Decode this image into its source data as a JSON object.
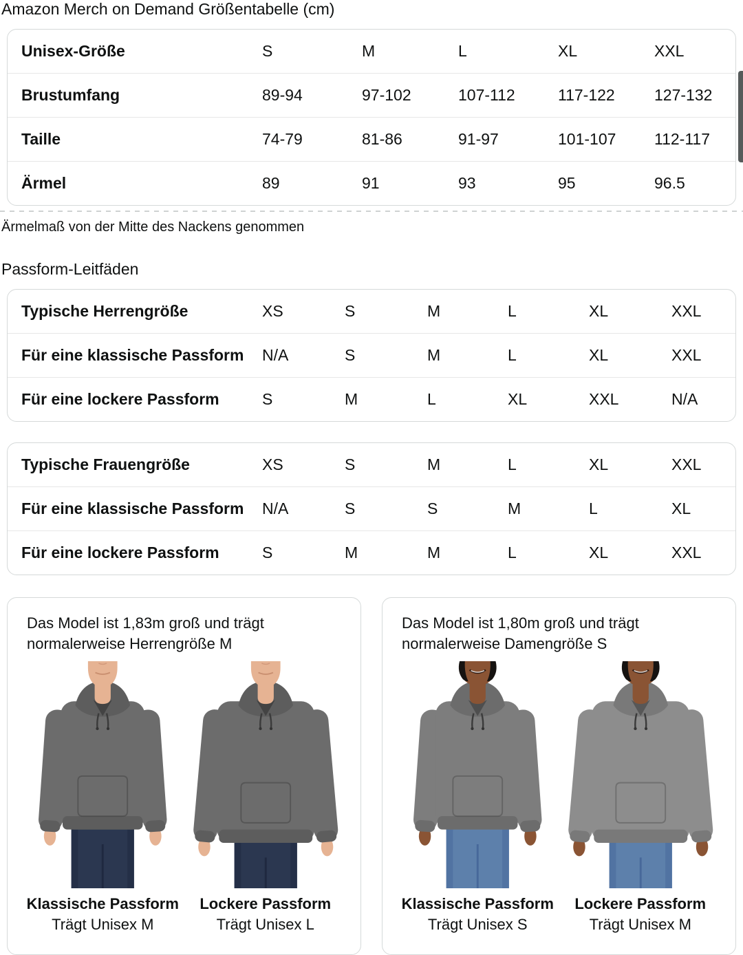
{
  "page": {
    "title": "Amazon Merch on Demand Größentabelle (cm)"
  },
  "size_table": {
    "rows": [
      {
        "label": "Unisex-Größe",
        "values": [
          "S",
          "M",
          "L",
          "XL",
          "XXL"
        ]
      },
      {
        "label": "Brustumfang",
        "values": [
          "89-94",
          "97-102",
          "107-112",
          "117-122",
          "127-132"
        ]
      },
      {
        "label": "Taille",
        "values": [
          "74-79",
          "81-86",
          "91-97",
          "101-107",
          "112-117"
        ]
      },
      {
        "label": "Ärmel",
        "values": [
          "89",
          "91",
          "93",
          "95",
          "96.5"
        ]
      }
    ]
  },
  "note": "Ärmelmaß von der Mitte des Nackens genommen",
  "fit_guides_heading": "Passform-Leitfäden",
  "mens_fit_table": {
    "rows": [
      {
        "label": "Typische Herrengröße",
        "values": [
          "XS",
          "S",
          "M",
          "L",
          "XL",
          "XXL"
        ]
      },
      {
        "label": "Für eine klassische Passform",
        "values": [
          "N/A",
          "S",
          "M",
          "L",
          "XL",
          "XXL"
        ]
      },
      {
        "label": "Für eine lockere Passform",
        "values": [
          "S",
          "M",
          "L",
          "XL",
          "XXL",
          "N/A"
        ]
      }
    ]
  },
  "womens_fit_table": {
    "rows": [
      {
        "label": "Typische Frauengröße",
        "values": [
          "XS",
          "S",
          "M",
          "L",
          "XL",
          "XXL"
        ]
      },
      {
        "label": "Für eine klassische Passform",
        "values": [
          "N/A",
          "S",
          "S",
          "M",
          "L",
          "XL"
        ]
      },
      {
        "label": "Für eine lockere Passform",
        "values": [
          "S",
          "M",
          "M",
          "L",
          "XL",
          "XXL"
        ]
      }
    ]
  },
  "model_cards": [
    {
      "description": "Das Model ist 1,83m groß und trägt normalerweise Herrengröße M",
      "figures": [
        {
          "fit_label": "Klassische Passform",
          "size_label": "Trägt Unisex M",
          "person": "man",
          "variant": "classic",
          "hoodie": "#6c6c6c"
        },
        {
          "fit_label": "Lockere Passform",
          "size_label": "Trägt Unisex L",
          "person": "man",
          "variant": "loose",
          "hoodie": "#6c6c6c"
        }
      ]
    },
    {
      "description": "Das Model ist 1,80m groß und trägt normalerweise Damengröße S",
      "figures": [
        {
          "fit_label": "Klassische Passform",
          "size_label": "Trägt Unisex S",
          "person": "woman",
          "variant": "classic",
          "hoodie": "#7d7d7d"
        },
        {
          "fit_label": "Lockere Passform",
          "size_label": "Trägt Unisex M",
          "person": "woman",
          "variant": "loose",
          "hoodie": "#8d8d8d"
        }
      ]
    }
  ],
  "colors": {
    "text": "#0f1111",
    "border": "#d5d9d9",
    "row_divider": "#e7e7e7",
    "scrollbar": "#565a5a",
    "man_skin": "#e6b393",
    "man_skin_shade": "#c98f70",
    "man_jeans": "#2b3750",
    "man_jeans_shade": "#1f2940",
    "woman_skin": "#8a5434",
    "woman_hair": "#161311",
    "woman_jeans": "#5d80ab",
    "woman_jeans_shade": "#47689a"
  }
}
